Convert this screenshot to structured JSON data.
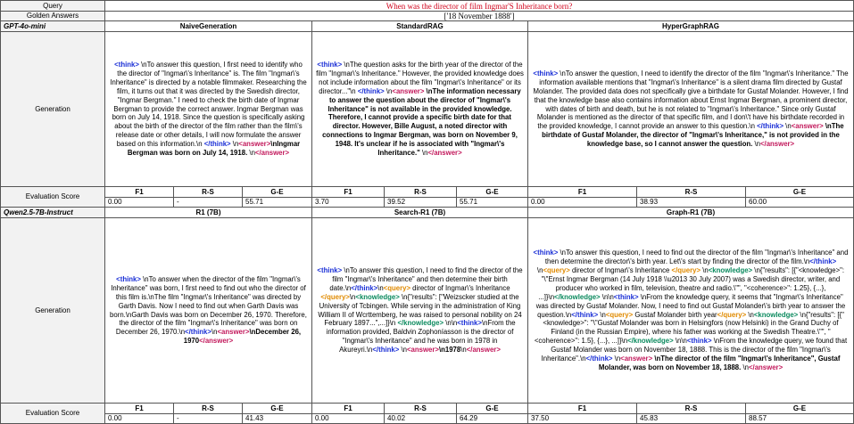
{
  "query": {
    "label": "Query",
    "text": "When was the director of film Ingmar'S Inheritance born?"
  },
  "golden": {
    "label": "Golden Answers",
    "text": "['18 November 1888']"
  },
  "styles": {
    "think": "#1a2fd6",
    "answer": "#c2185b",
    "query": "#e08a00",
    "knowledge": "#0b8a5e",
    "plain": "#000000",
    "bold": "#000000",
    "query_text": "#d0021b"
  },
  "blocks": [
    {
      "model": "GPT-4o-mini",
      "methods": [
        "NaiveGeneration",
        "StandardRAG",
        "HyperGraphRAG"
      ],
      "generation_label": "Generation",
      "score_label": "Evaluation Score",
      "metrics": [
        "F1",
        "R-S",
        "G-E"
      ],
      "scores": [
        [
          "0.00",
          "-",
          "55.71"
        ],
        [
          "3.70",
          "39.52",
          "55.71"
        ],
        [
          "0.00",
          "38.93",
          "60.00"
        ]
      ],
      "generations": [
        [
          {
            "style": "think",
            "text": "<think>"
          },
          {
            "style": "plain",
            "text": " \\nTo answer this question, I first need to identify who the director of \"Ingmar\\'s Inheritance\" is. The film \"Ingmar\\'s Inheritance\" is directed by a notable filmmaker. Researching the film, it turns out that it was directed by the Swedish director, \"Ingmar Bergman.\" I need to check the birth date of Ingmar Bergman to provide the correct answer. Ingmar Bergman was born on July 14, 1918. Since the question is specifically asking about the birth of the director of the film rather than the film\\'s release date or other details, I will now formulate the answer based on this information.\\n "
          },
          {
            "style": "think",
            "text": "</think>"
          },
          {
            "style": "plain",
            "text": " \\n"
          },
          {
            "style": "answer",
            "text": "<answer>"
          },
          {
            "style": "bold",
            "text": "\\nIngmar Bergman was born on July 14, 1918."
          },
          {
            "style": "plain",
            "text": " \\n"
          },
          {
            "style": "answer",
            "text": "</answer>"
          }
        ],
        [
          {
            "style": "think",
            "text": "<think>"
          },
          {
            "style": "plain",
            "text": " \\nThe question asks for the birth year of the director of the film \"Ingmar\\'s Inheritance.\" However, the provided knowledge does not include information about the film \"Ingmar\\'s Inheritance\" or its director...\"\\n "
          },
          {
            "style": "think",
            "text": "</think>"
          },
          {
            "style": "plain",
            "text": " \\n"
          },
          {
            "style": "answer",
            "text": "<answer>"
          },
          {
            "style": "bold",
            "text": " \\nThe information necessary to answer the question about the director of \"Ingmar\\'s Inheritance\" is not available in the provided knowledge. Therefore, I cannot provide a specific birth date for that director. However, Bille August, a noted director with connections to Ingmar Bergman, was born on November 9, 1948. It's unclear if he is associated with \"Ingmar\\'s Inheritance.\""
          },
          {
            "style": "plain",
            "text": " \\n"
          },
          {
            "style": "answer",
            "text": "</answer>"
          }
        ],
        [
          {
            "style": "think",
            "text": "<think>"
          },
          {
            "style": "plain",
            "text": " \\nTo answer the question, I need to identify the director of the film \"Ingmar\\'s Inheritance.\" The information available mentions that \"Ingmar\\'s Inheritance\" is a silent drama film directed by Gustaf Molander. The provided data does not specifically give a birthdate for Gustaf Molander. However, I find that the knowledge base also contains information about Ernst Ingmar Bergman, a prominent director, with dates of birth and death, but he is not related to \"Ingmar\\'s Inheritance.\" Since only Gustaf Molander is mentioned as the director of that specific film, and I don\\'t have his birthdate recorded in the provided knowledge, I cannot provide an answer to this question.\\n "
          },
          {
            "style": "think",
            "text": "</think>"
          },
          {
            "style": "plain",
            "text": " \\n"
          },
          {
            "style": "answer",
            "text": "<answer>"
          },
          {
            "style": "bold",
            "text": " \\nThe birthdate of Gustaf Molander, the director of \"Ingmar\\'s Inheritance,\" is not provided in the knowledge base, so I cannot answer the question."
          },
          {
            "style": "plain",
            "text": " \\n"
          },
          {
            "style": "answer",
            "text": "</answer>"
          }
        ]
      ]
    },
    {
      "model": "Qwen2.5-7B-Instruct",
      "methods": [
        "R1 (7B)",
        "Search-R1 (7B)",
        "Graph-R1 (7B)"
      ],
      "generation_label": "Generation",
      "score_label": "Evaluation Score",
      "metrics": [
        "F1",
        "R-S",
        "G-E"
      ],
      "scores": [
        [
          "0.00",
          "-",
          "41.43"
        ],
        [
          "0.00",
          "40.02",
          "64.29"
        ],
        [
          "37.50",
          "45.83",
          "88.57"
        ]
      ],
      "generations": [
        [
          {
            "style": "think",
            "text": "<think>"
          },
          {
            "style": "plain",
            "text": " \\nTo answer when the director of the film \"Ingmar\\'s Inheritance\" was born, I first need to find out who the director of this film is.\\nThe film \"Ingmar\\'s Inheritance\" was directed by Garth Davis. Now I need to find out when Garth Davis was born.\\nGarth Davis was born on December 26, 1970. Therefore, the director of the film \"Ingmar\\'s Inheritance\" was born on December 26, 1970.\\n"
          },
          {
            "style": "think",
            "text": "</think>"
          },
          {
            "style": "plain",
            "text": "\\n"
          },
          {
            "style": "answer",
            "text": "<answer>"
          },
          {
            "style": "bold",
            "text": "\\nDecember 26, 1970"
          },
          {
            "style": "answer",
            "text": "</answer>"
          }
        ],
        [
          {
            "style": "think",
            "text": "<think>"
          },
          {
            "style": "plain",
            "text": " \\nTo answer this question, I need to find the director of the film \"Ingmar\\'s Inheritance\" and then determine their birth date.\\n"
          },
          {
            "style": "think",
            "text": "</think>"
          },
          {
            "style": "plain",
            "text": "\\n"
          },
          {
            "style": "query",
            "text": "<query>"
          },
          {
            "style": "plain",
            "text": " director of Ingmar\\'s Inheritance "
          },
          {
            "style": "query",
            "text": "</query>"
          },
          {
            "style": "plain",
            "text": "\\n"
          },
          {
            "style": "knowledge",
            "text": "<knowledge>"
          },
          {
            "style": "plain",
            "text": " \\n{\"results\": [\"Weizscker studied at the University of Tcbingen. While serving in the administration of King William II of Wcrttemberg, he was raised to personal nobility on 24 February 1897...\",...]}\\n "
          },
          {
            "style": "knowledge",
            "text": "</knowledge>"
          },
          {
            "style": "plain",
            "text": " \\n\\n"
          },
          {
            "style": "think",
            "text": "<think>"
          },
          {
            "style": "plain",
            "text": "\\nFrom the information provided, Baldvin Zophoníasson is the director of \"Ingmar\\'s Inheritance\" and he was born in 1978 in Akureyri.\\n"
          },
          {
            "style": "think",
            "text": "</think>"
          },
          {
            "style": "plain",
            "text": " \\n"
          },
          {
            "style": "answer",
            "text": "<answer>"
          },
          {
            "style": "bold",
            "text": "\\n1978"
          },
          {
            "style": "plain",
            "text": "\\n"
          },
          {
            "style": "answer",
            "text": "</answer>"
          }
        ],
        [
          {
            "style": "think",
            "text": "<think>"
          },
          {
            "style": "plain",
            "text": " \\nTo answer this question, I need to find out the director of the film \"Ingmar\\'s Inheritance\" and then determine the director\\'s birth year. Let\\'s start by finding the director of the film.\\n"
          },
          {
            "style": "think",
            "text": "</think>"
          },
          {
            "style": "plain",
            "text": " \\n"
          },
          {
            "style": "query",
            "text": "<query>"
          },
          {
            "style": "plain",
            "text": " director of Ingmar\\'s Inheritance "
          },
          {
            "style": "query",
            "text": "</query>"
          },
          {
            "style": "plain",
            "text": " \\n"
          },
          {
            "style": "knowledge",
            "text": "<knowledge>"
          },
          {
            "style": "plain",
            "text": " \\n{\"results\": [{\"<knowledge>\": \"\\\"Ernst Ingmar Bergman (14 July 1918 \\\\u2013 30 July 2007) was a Swedish director, writer, and producer who worked in film, television, theatre and radio.\\\"\", \"<coherence>\": 1.25}, {...}, ...]}\\n"
          },
          {
            "style": "knowledge",
            "text": "</knowledge>"
          },
          {
            "style": "plain",
            "text": " \\n\\n"
          },
          {
            "style": "think",
            "text": "<think>"
          },
          {
            "style": "plain",
            "text": " \\nFrom the knowledge query, it seems that \"Ingmar\\'s Inheritance\" was directed by Gustaf Molander. Now, I need to find out Gustaf Molander\\'s birth year to answer the question.\\n"
          },
          {
            "style": "think",
            "text": "</think>"
          },
          {
            "style": "plain",
            "text": " \\n"
          },
          {
            "style": "query",
            "text": "<query>"
          },
          {
            "style": "plain",
            "text": " Gustaf Molander birth year"
          },
          {
            "style": "query",
            "text": "</query>"
          },
          {
            "style": "plain",
            "text": " \\n"
          },
          {
            "style": "knowledge",
            "text": "<knowledge>"
          },
          {
            "style": "plain",
            "text": " \\n{\"results\": [{\"<knowledge>\": \"\\\"Gustaf Molander was born in Helsingfors (now Helsinki) in the Grand Duchy of Finland (in the Russian Empire), where his father was working at the Swedish Theatre.\\\"\", \"<coherence>\": 1.5}, {...}, ...]}\\n"
          },
          {
            "style": "knowledge",
            "text": "</knowledge>"
          },
          {
            "style": "plain",
            "text": " \\n\\n"
          },
          {
            "style": "think",
            "text": "<think>"
          },
          {
            "style": "plain",
            "text": " \\nFrom the knowledge query, we found that Gustaf Molander was born on November 18, 1888. This is the director of the film \"Ingmar\\'s Inheritance\".\\n"
          },
          {
            "style": "think",
            "text": "</think>"
          },
          {
            "style": "plain",
            "text": " \\n"
          },
          {
            "style": "answer",
            "text": "<answer>"
          },
          {
            "style": "bold",
            "text": " \\nThe director of the film \"Ingmar\\'s Inheritance\", Gustaf Molander, was born on November 18, 1888."
          },
          {
            "style": "plain",
            "text": " \\n"
          },
          {
            "style": "answer",
            "text": "</answer>"
          }
        ]
      ]
    }
  ]
}
